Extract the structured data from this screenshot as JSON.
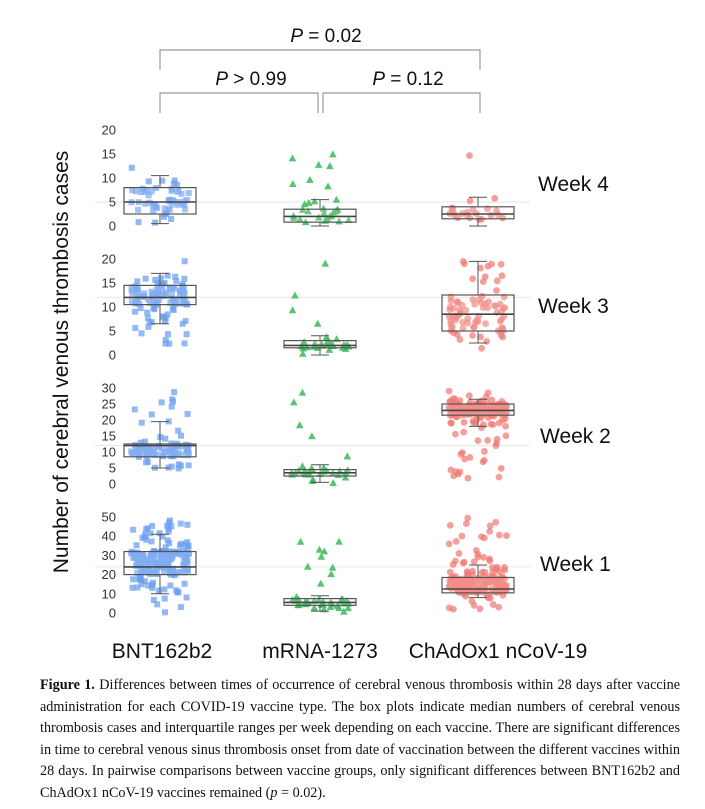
{
  "chart_data": {
    "type": "boxplot-jitter",
    "ylabel": "Number of cerebral venous thrombosis cases",
    "categories": [
      "BNT162b2",
      "mRNA-1273",
      "ChAdOx1 nCoV-19"
    ],
    "colors": {
      "BNT162b2": "#6a9ef0",
      "mRNA-1273": "#39b85a",
      "ChAdOx1 nCoV-19": "#f07a74"
    },
    "markers": {
      "BNT162b2": "square",
      "mRNA-1273": "triangle",
      "ChAdOx1 nCoV-19": "circle"
    },
    "comparisons": [
      {
        "pair": [
          "BNT162b2",
          "mRNA-1273"
        ],
        "label": "P > 0.99"
      },
      {
        "pair": [
          "mRNA-1273",
          "ChAdOx1 nCoV-19"
        ],
        "label": "P = 0.12"
      },
      {
        "pair": [
          "BNT162b2",
          "ChAdOx1 nCoV-19"
        ],
        "label": "P = 0.02"
      }
    ],
    "panels": [
      {
        "label": "Week 4",
        "ylim": [
          0,
          21
        ],
        "yticks": [
          0,
          5,
          10,
          15,
          20
        ],
        "boxes": [
          {
            "q1": 2.5,
            "median": 5,
            "q3": 8,
            "whislo": 0.5,
            "whishi": 10.5,
            "n": 55,
            "min": 0,
            "max": 20
          },
          {
            "q1": 0.8,
            "median": 2,
            "q3": 3.5,
            "whislo": 0,
            "whishi": 5.5,
            "n": 30,
            "min": 0,
            "max": 19
          },
          {
            "q1": 1.5,
            "median": 2.5,
            "q3": 4,
            "whislo": 0,
            "whishi": 6,
            "n": 22,
            "min": 0,
            "max": 19
          }
        ]
      },
      {
        "label": "Week 3",
        "ylim": [
          0,
          21
        ],
        "yticks": [
          0,
          5,
          10,
          15,
          20
        ],
        "boxes": [
          {
            "q1": 10.5,
            "median": 12,
            "q3": 14.5,
            "whislo": 6.5,
            "whishi": 17,
            "n": 110,
            "min": 0,
            "max": 20
          },
          {
            "q1": 1.5,
            "median": 2,
            "q3": 3,
            "whislo": 0,
            "whishi": 4,
            "n": 28,
            "min": 0,
            "max": 20
          },
          {
            "q1": 5,
            "median": 8.5,
            "q3": 12.5,
            "whislo": 2.5,
            "whishi": 19.5,
            "n": 80,
            "min": 0,
            "max": 20
          }
        ]
      },
      {
        "label": "Week 2",
        "ylim": [
          0,
          31
        ],
        "yticks": [
          0,
          5,
          10,
          15,
          20,
          25,
          30
        ],
        "boxes": [
          {
            "q1": 8.5,
            "median": 12,
            "q3": 12.5,
            "whislo": 5,
            "whishi": 19.5,
            "n": 95,
            "min": 0,
            "max": 30
          },
          {
            "q1": 2.5,
            "median": 3.5,
            "q3": 4.5,
            "whislo": 0.5,
            "whishi": 6,
            "n": 30,
            "min": 0,
            "max": 30
          },
          {
            "q1": 21.5,
            "median": 23,
            "q3": 25,
            "whislo": 18,
            "whishi": 26.5,
            "n": 190,
            "min": 0,
            "max": 30
          }
        ]
      },
      {
        "label": "Week 1",
        "ylim": [
          0,
          52
        ],
        "yticks": [
          0,
          10,
          20,
          30,
          40,
          50
        ],
        "boxes": [
          {
            "q1": 20,
            "median": 24,
            "q3": 32,
            "whislo": 10,
            "whishi": 41,
            "n": 210,
            "min": 0,
            "max": 50
          },
          {
            "q1": 4,
            "median": 5.5,
            "q3": 7.5,
            "whislo": 1,
            "whishi": 9,
            "n": 45,
            "min": 0,
            "max": 46
          },
          {
            "q1": 10.5,
            "median": 12.5,
            "q3": 18.5,
            "whislo": 8,
            "whishi": 25,
            "n": 200,
            "min": 0,
            "max": 50
          }
        ]
      }
    ]
  },
  "caption": {
    "label": "Figure 1.",
    "text": "Differences between times of occurrence of cerebral venous thrombosis within 28 days after vaccine administration for each COVID-19 vaccine type. The box plots indicate median numbers of cerebral venous thrombosis cases and interquartile ranges per week depending on each vaccine. There are significant differences in time to cerebral venous sinus thrombosis onset from date of vaccination between the different vaccines within 28 days. In pairwise comparisons between vaccine groups, only significant differences between BNT162b2 and ChAdOx1 nCoV-19 vaccines remained (",
    "p_symbol": "p",
    "p_value": " = 0.02)."
  }
}
